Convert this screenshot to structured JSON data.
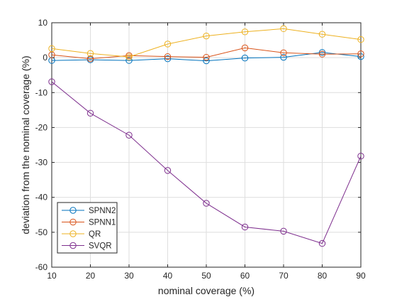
{
  "chart_data": {
    "type": "line",
    "title": "",
    "xlabel": "nominal coverage (%)",
    "ylabel": "deviation from the nominal coverage (%)",
    "x": [
      10,
      20,
      30,
      40,
      50,
      60,
      70,
      80,
      90
    ],
    "xlim": [
      10,
      90
    ],
    "ylim": [
      -60,
      10
    ],
    "xticks": [
      10,
      20,
      30,
      40,
      50,
      60,
      70,
      80,
      90
    ],
    "yticks": [
      -60,
      -50,
      -40,
      -30,
      -20,
      -10,
      0,
      10
    ],
    "grid": true,
    "legend_position": "bottom-left",
    "marker": "circle",
    "series": [
      {
        "name": "SPNN2",
        "color": "#0072BD",
        "values": [
          -0.8,
          -0.6,
          -0.8,
          -0.3,
          -0.9,
          -0.1,
          0.1,
          1.5,
          0.3
        ]
      },
      {
        "name": "SPNN1",
        "color": "#D95319",
        "values": [
          0.8,
          -0.3,
          0.6,
          0.3,
          0.1,
          2.8,
          1.4,
          1.0,
          1.1
        ]
      },
      {
        "name": "QR",
        "color": "#EDB120",
        "values": [
          2.6,
          1.2,
          0.2,
          3.9,
          6.2,
          7.4,
          8.3,
          6.7,
          5.2
        ]
      },
      {
        "name": "SVQR",
        "color": "#7E2F8E",
        "values": [
          -6.9,
          -15.9,
          -22.2,
          -32.3,
          -41.7,
          -48.5,
          -49.7,
          -53.2,
          -28.2
        ]
      }
    ]
  }
}
